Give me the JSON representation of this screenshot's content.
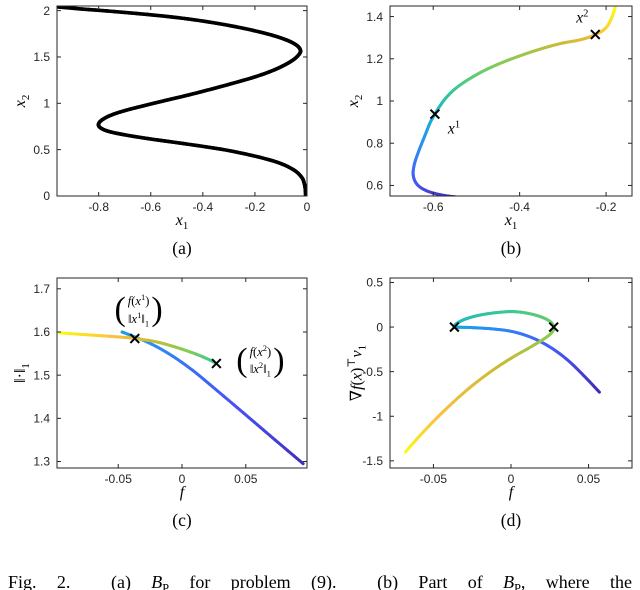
{
  "figure": {
    "background": "#ffffff",
    "caption": "Fig. 2.  (a) *B*_P for problem (9).  (b) Part of *B*_P, where the"
  },
  "axis_style": {
    "color": "#262626",
    "tick_len": 4,
    "font_size": 12
  },
  "colormap": {
    "name": "parula",
    "stops": [
      [
        0,
        "#3E26A8"
      ],
      [
        0.125,
        "#4852F4"
      ],
      [
        0.25,
        "#2E87F7"
      ],
      [
        0.375,
        "#12B1D6"
      ],
      [
        0.5,
        "#37C897"
      ],
      [
        0.625,
        "#81CC59"
      ],
      [
        0.75,
        "#C8BB39"
      ],
      [
        0.875,
        "#FDC03C"
      ],
      [
        1,
        "#F9FB14"
      ]
    ]
  },
  "chart_data": [
    {
      "key": "a",
      "type": "line",
      "panel_label": "(a)",
      "xlabel": "*x*_1",
      "ylabel": "*x*_2",
      "xlim": [
        -0.96,
        0.0
      ],
      "ylim": [
        0,
        2.05
      ],
      "xticks": [
        [
          -0.8,
          "-0.8"
        ],
        [
          -0.6,
          "-0.6"
        ],
        [
          -0.4,
          "-0.4"
        ],
        [
          -0.2,
          "-0.2"
        ],
        [
          0,
          "0"
        ]
      ],
      "yticks": [
        [
          0,
          "0"
        ],
        [
          0.5,
          "0.5"
        ],
        [
          1,
          "1"
        ],
        [
          1.5,
          "1.5"
        ],
        [
          2,
          "2"
        ]
      ],
      "margins": {
        "ml": 57,
        "mr": 13
      },
      "series": [
        {
          "name": "solution-branch",
          "color": "#000000",
          "width": 3.6,
          "points": [
            [
              -0.005,
              0
            ],
            [
              -0.006,
              0.06
            ],
            [
              -0.01,
              0.13
            ],
            [
              -0.02,
              0.2
            ],
            [
              -0.05,
              0.28
            ],
            [
              -0.11,
              0.36
            ],
            [
              -0.2,
              0.43
            ],
            [
              -0.32,
              0.5
            ],
            [
              -0.46,
              0.56
            ],
            [
              -0.6,
              0.615
            ],
            [
              -0.7,
              0.66
            ],
            [
              -0.765,
              0.7
            ],
            [
              -0.795,
              0.74
            ],
            [
              -0.8,
              0.78
            ],
            [
              -0.785,
              0.825
            ],
            [
              -0.75,
              0.875
            ],
            [
              -0.695,
              0.925
            ],
            [
              -0.625,
              0.975
            ],
            [
              -0.545,
              1.03
            ],
            [
              -0.455,
              1.09
            ],
            [
              -0.365,
              1.155
            ],
            [
              -0.28,
              1.22
            ],
            [
              -0.2,
              1.285
            ],
            [
              -0.135,
              1.35
            ],
            [
              -0.085,
              1.415
            ],
            [
              -0.05,
              1.475
            ],
            [
              -0.03,
              1.53
            ],
            [
              -0.025,
              1.57
            ],
            [
              -0.035,
              1.615
            ],
            [
              -0.06,
              1.66
            ],
            [
              -0.1,
              1.705
            ],
            [
              -0.16,
              1.755
            ],
            [
              -0.245,
              1.81
            ],
            [
              -0.35,
              1.865
            ],
            [
              -0.47,
              1.915
            ],
            [
              -0.6,
              1.955
            ],
            [
              -0.74,
              1.99
            ],
            [
              -0.875,
              2.02
            ],
            [
              -0.955,
              2.04
            ]
          ]
        }
      ],
      "markers": [],
      "point_labels": [],
      "annotations": []
    },
    {
      "key": "b",
      "type": "line",
      "panel_label": "(b)",
      "xlabel": "*x*_1",
      "ylabel": "*x*_2",
      "xlim": [
        -0.7,
        -0.14
      ],
      "ylim": [
        0.55,
        1.45
      ],
      "xticks": [
        [
          -0.6,
          "-0.6"
        ],
        [
          -0.4,
          "-0.4"
        ],
        [
          -0.2,
          "-0.2"
        ]
      ],
      "yticks": [
        [
          0.6,
          "0.6"
        ],
        [
          0.8,
          "0.8"
        ],
        [
          1,
          "1"
        ],
        [
          1.2,
          "1.2"
        ],
        [
          1.4,
          "1.4"
        ]
      ],
      "margins": {
        "ml": 70,
        "mr": 8
      },
      "series": [
        {
          "name": "colored-branch",
          "color": "parula",
          "width": 3,
          "points": [
            [
              -0.545,
              0.545,
              0.0
            ],
            [
              -0.576,
              0.553,
              0.04
            ],
            [
              -0.612,
              0.572,
              0.08
            ],
            [
              -0.636,
              0.602,
              0.12
            ],
            [
              -0.646,
              0.645,
              0.16
            ],
            [
              -0.644,
              0.697,
              0.2
            ],
            [
              -0.634,
              0.76,
              0.25
            ],
            [
              -0.62,
              0.832,
              0.3
            ],
            [
              -0.607,
              0.898,
              0.35
            ],
            [
              -0.596,
              0.938,
              0.39
            ],
            [
              -0.585,
              0.975,
              0.43
            ],
            [
              -0.57,
              1.016,
              0.47
            ],
            [
              -0.549,
              1.058,
              0.51
            ],
            [
              -0.52,
              1.1,
              0.55
            ],
            [
              -0.484,
              1.142,
              0.59
            ],
            [
              -0.443,
              1.18,
              0.63
            ],
            [
              -0.398,
              1.215,
              0.67
            ],
            [
              -0.352,
              1.246,
              0.71
            ],
            [
              -0.306,
              1.272,
              0.75
            ],
            [
              -0.264,
              1.288,
              0.79
            ],
            [
              -0.238,
              1.303,
              0.82
            ],
            [
              -0.225,
              1.315,
              0.86
            ],
            [
              -0.21,
              1.33,
              0.89
            ],
            [
              -0.197,
              1.355,
              0.92
            ],
            [
              -0.188,
              1.39,
              0.95
            ],
            [
              -0.182,
              1.422,
              0.98
            ],
            [
              -0.179,
              1.443,
              1.0
            ]
          ]
        }
      ],
      "markers": [
        [
          -0.596,
          0.938
        ],
        [
          -0.225,
          1.315
        ]
      ],
      "point_labels": [
        {
          "x": -0.552,
          "y": 0.868,
          "text": "*x*^1"
        },
        {
          "x": -0.255,
          "y": 1.392,
          "text": "*x*^2"
        }
      ],
      "annotations": []
    },
    {
      "key": "c",
      "type": "line",
      "panel_label": "(c)",
      "xlabel": "*f*",
      "ylabel": "‖·‖_1",
      "xlim": [
        -0.098,
        0.098
      ],
      "ylim": [
        1.285,
        1.725
      ],
      "xticks": [
        [
          -0.05,
          "-0.05"
        ],
        [
          0,
          "0"
        ],
        [
          0.05,
          "0.05"
        ]
      ],
      "yticks": [
        [
          1.3,
          "1.3"
        ],
        [
          1.4,
          "1.4"
        ],
        [
          1.5,
          "1.5"
        ],
        [
          1.6,
          "1.6"
        ],
        [
          1.7,
          "1.7"
        ]
      ],
      "margins": {
        "ml": 57,
        "mr": 13
      },
      "series": [
        {
          "name": "branch-blue",
          "color": "parula",
          "width": 3,
          "points": [
            [
              0.095,
              1.295,
              0.02
            ],
            [
              0.073,
              1.35,
              0.07
            ],
            [
              0.05,
              1.408,
              0.11
            ],
            [
              0.028,
              1.463,
              0.15
            ],
            [
              0.008,
              1.512,
              0.19
            ],
            [
              -0.01,
              1.549,
              0.23
            ],
            [
              -0.026,
              1.575,
              0.27
            ],
            [
              -0.04,
              1.592,
              0.3
            ],
            [
              -0.047,
              1.6,
              0.32
            ]
          ]
        },
        {
          "name": "branch-yellow",
          "color": "parula",
          "width": 3,
          "points": [
            [
              -0.096,
              1.598,
              1.0
            ],
            [
              -0.072,
              1.593,
              0.93
            ],
            [
              -0.052,
              1.589,
              0.87
            ],
            [
              -0.037,
              1.585,
              0.82
            ],
            [
              -0.02,
              1.577,
              0.74
            ],
            [
              -0.004,
              1.564,
              0.67
            ],
            [
              0.009,
              1.551,
              0.61
            ],
            [
              0.019,
              1.539,
              0.55
            ],
            [
              0.0265,
              1.528,
              0.5
            ]
          ]
        }
      ],
      "markers": [
        [
          -0.037,
          1.585
        ],
        [
          0.027,
          1.527
        ]
      ],
      "point_labels": [],
      "annotations": [
        {
          "x": -0.034,
          "y": 1.65,
          "rows": [
            "*f*(*x*^1)",
            "‖*x*^1‖_1"
          ]
        },
        {
          "x": 0.0615,
          "y": 1.532,
          "rows": [
            "*f*(*x*^2)",
            "‖*x*^2‖_1"
          ]
        }
      ]
    },
    {
      "key": "d",
      "type": "line",
      "panel_label": "(d)",
      "xlabel": "*f*",
      "ylabel": "∇*f*(*x*)^⊤*v*_1",
      "xlim": [
        -0.078,
        0.078
      ],
      "ylim": [
        -1.58,
        0.55
      ],
      "xticks": [
        [
          -0.05,
          "-0.05"
        ],
        [
          0,
          "0"
        ],
        [
          0.05,
          "0.05"
        ]
      ],
      "yticks": [
        [
          0.5,
          "0.5"
        ],
        [
          0,
          "0"
        ],
        [
          -0.5,
          "-0.5"
        ],
        [
          -1,
          "-1"
        ],
        [
          -1.5,
          "-1.5"
        ]
      ],
      "margins": {
        "ml": 70,
        "mr": 8
      },
      "series": [
        {
          "name": "gradient-loop",
          "color": "parula",
          "width": 3,
          "points": [
            [
              0.057,
              -0.73,
              0.02
            ],
            [
              0.0475,
              -0.555,
              0.06
            ],
            [
              0.0375,
              -0.385,
              0.1
            ],
            [
              0.027,
              -0.245,
              0.14
            ],
            [
              0.015,
              -0.13,
              0.18
            ],
            [
              0.002,
              -0.055,
              0.22
            ],
            [
              -0.011,
              -0.022,
              0.26
            ],
            [
              -0.024,
              -0.007,
              0.3
            ],
            [
              -0.033,
              -0.002,
              0.34
            ],
            [
              -0.0365,
              0.0,
              0.375
            ],
            [
              -0.035,
              0.04,
              0.41
            ],
            [
              -0.029,
              0.092,
              0.44
            ],
            [
              -0.019,
              0.138,
              0.47
            ],
            [
              -0.006,
              0.168,
              0.5
            ],
            [
              0.003,
              0.172,
              0.52
            ],
            [
              0.012,
              0.15,
              0.545
            ],
            [
              0.02,
              0.11,
              0.565
            ],
            [
              0.0255,
              0.058,
              0.585
            ],
            [
              0.0275,
              0.0,
              0.605
            ],
            [
              0.0265,
              -0.058,
              0.63
            ],
            [
              0.0215,
              -0.13,
              0.66
            ],
            [
              0.0125,
              -0.225,
              0.69
            ],
            [
              0.0,
              -0.35,
              0.73
            ],
            [
              -0.0135,
              -0.505,
              0.77
            ],
            [
              -0.028,
              -0.7,
              0.81
            ],
            [
              -0.0435,
              -0.945,
              0.86
            ],
            [
              -0.057,
              -1.185,
              0.92
            ],
            [
              -0.068,
              -1.4,
              1.0
            ]
          ]
        }
      ],
      "markers": [
        [
          -0.0365,
          0.0
        ],
        [
          0.0275,
          0.0
        ]
      ],
      "point_labels": [],
      "annotations": []
    }
  ]
}
